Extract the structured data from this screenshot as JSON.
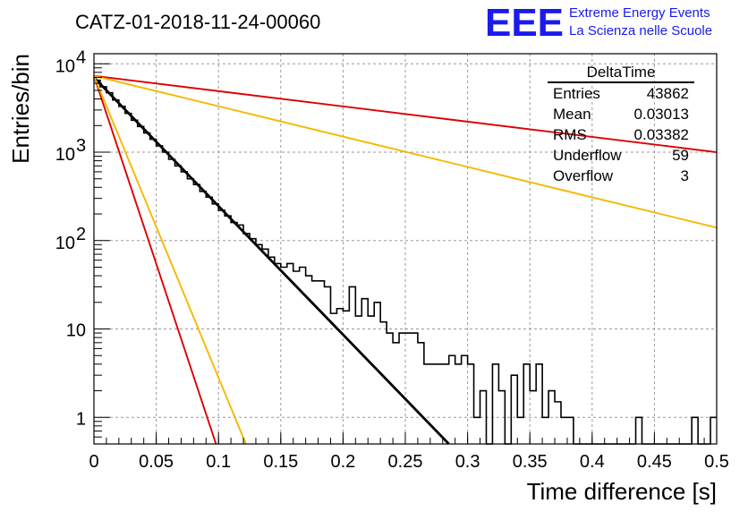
{
  "header": {
    "title": "CATZ-01-2018-11-24-00060",
    "logo_mark": "EEE",
    "logo_line1": "Extreme Energy Events",
    "logo_line2": "La Scienza nelle Scuole",
    "brand_color": "#1a1aee"
  },
  "stats_box": {
    "name": "DeltaTime",
    "rows": [
      {
        "label": "Entries",
        "value": "43862"
      },
      {
        "label": "Mean",
        "value": "0.03013"
      },
      {
        "label": "RMS",
        "value": "0.03382"
      },
      {
        "label": "Underflow",
        "value": "59"
      },
      {
        "label": "Overflow",
        "value": "3"
      }
    ]
  },
  "chart_data": {
    "type": "line",
    "xlabel": "Time difference [s]",
    "ylabel": "Entries/bin",
    "xlim": [
      0,
      0.5
    ],
    "ylim": [
      0.5,
      13000
    ],
    "yscale": "log",
    "grid": true,
    "x_ticks": [
      {
        "value": 0,
        "label": "0"
      },
      {
        "value": 0.05,
        "label": "0.05"
      },
      {
        "value": 0.1,
        "label": "0.1"
      },
      {
        "value": 0.15,
        "label": "0.15"
      },
      {
        "value": 0.2,
        "label": "0.2"
      },
      {
        "value": 0.25,
        "label": "0.25"
      },
      {
        "value": 0.3,
        "label": "0.3"
      },
      {
        "value": 0.35,
        "label": "0.35"
      },
      {
        "value": 0.4,
        "label": "0.4"
      },
      {
        "value": 0.45,
        "label": "0.45"
      },
      {
        "value": 0.5,
        "label": "0.5"
      }
    ],
    "y_ticks": [
      {
        "value": 1,
        "label": "1"
      },
      {
        "value": 10,
        "label": "10"
      },
      {
        "value": 100,
        "label": "10",
        "exp": "2"
      },
      {
        "value": 1000,
        "label": "10",
        "exp": "3"
      },
      {
        "value": 10000,
        "label": "10",
        "exp": "4"
      }
    ],
    "histogram": {
      "color": "#000000",
      "bin_width": 0.005,
      "bins": [
        {
          "x": 0.0,
          "y": 6500
        },
        {
          "x": 0.005,
          "y": 5500
        },
        {
          "x": 0.01,
          "y": 4700
        },
        {
          "x": 0.015,
          "y": 3900
        },
        {
          "x": 0.02,
          "y": 3300
        },
        {
          "x": 0.025,
          "y": 2750
        },
        {
          "x": 0.03,
          "y": 2300
        },
        {
          "x": 0.035,
          "y": 1950
        },
        {
          "x": 0.04,
          "y": 1650
        },
        {
          "x": 0.045,
          "y": 1400
        },
        {
          "x": 0.05,
          "y": 1180
        },
        {
          "x": 0.055,
          "y": 1000
        },
        {
          "x": 0.06,
          "y": 830
        },
        {
          "x": 0.065,
          "y": 700
        },
        {
          "x": 0.07,
          "y": 600
        },
        {
          "x": 0.075,
          "y": 500
        },
        {
          "x": 0.08,
          "y": 430
        },
        {
          "x": 0.085,
          "y": 360
        },
        {
          "x": 0.09,
          "y": 310
        },
        {
          "x": 0.095,
          "y": 260
        },
        {
          "x": 0.1,
          "y": 220
        },
        {
          "x": 0.105,
          "y": 190
        },
        {
          "x": 0.11,
          "y": 160
        },
        {
          "x": 0.115,
          "y": 150
        },
        {
          "x": 0.12,
          "y": 120
        },
        {
          "x": 0.125,
          "y": 105
        },
        {
          "x": 0.13,
          "y": 90
        },
        {
          "x": 0.135,
          "y": 80
        },
        {
          "x": 0.14,
          "y": 65
        },
        {
          "x": 0.145,
          "y": 55
        },
        {
          "x": 0.15,
          "y": 50
        },
        {
          "x": 0.155,
          "y": 55
        },
        {
          "x": 0.16,
          "y": 45
        },
        {
          "x": 0.165,
          "y": 50
        },
        {
          "x": 0.17,
          "y": 40
        },
        {
          "x": 0.175,
          "y": 35
        },
        {
          "x": 0.18,
          "y": 35
        },
        {
          "x": 0.185,
          "y": 30
        },
        {
          "x": 0.19,
          "y": 15
        },
        {
          "x": 0.195,
          "y": 17
        },
        {
          "x": 0.2,
          "y": 16
        },
        {
          "x": 0.205,
          "y": 30
        },
        {
          "x": 0.21,
          "y": 14
        },
        {
          "x": 0.215,
          "y": 22
        },
        {
          "x": 0.22,
          "y": 14
        },
        {
          "x": 0.225,
          "y": 20
        },
        {
          "x": 0.23,
          "y": 12
        },
        {
          "x": 0.235,
          "y": 9
        },
        {
          "x": 0.24,
          "y": 7
        },
        {
          "x": 0.245,
          "y": 9
        },
        {
          "x": 0.25,
          "y": 9
        },
        {
          "x": 0.255,
          "y": 9
        },
        {
          "x": 0.26,
          "y": 7
        },
        {
          "x": 0.265,
          "y": 4
        },
        {
          "x": 0.27,
          "y": 4
        },
        {
          "x": 0.275,
          "y": 4
        },
        {
          "x": 0.28,
          "y": 4
        },
        {
          "x": 0.285,
          "y": 5
        },
        {
          "x": 0.29,
          "y": 4
        },
        {
          "x": 0.295,
          "y": 5
        },
        {
          "x": 0.3,
          "y": 4
        },
        {
          "x": 0.305,
          "y": 1
        },
        {
          "x": 0.31,
          "y": 2
        },
        {
          "x": 0.315,
          "y": 0
        },
        {
          "x": 0.32,
          "y": 4
        },
        {
          "x": 0.325,
          "y": 2
        },
        {
          "x": 0.33,
          "y": 0
        },
        {
          "x": 0.335,
          "y": 3
        },
        {
          "x": 0.34,
          "y": 1
        },
        {
          "x": 0.345,
          "y": 4
        },
        {
          "x": 0.35,
          "y": 2
        },
        {
          "x": 0.355,
          "y": 4
        },
        {
          "x": 0.36,
          "y": 1
        },
        {
          "x": 0.365,
          "y": 2
        },
        {
          "x": 0.37,
          "y": 1.5
        },
        {
          "x": 0.375,
          "y": 1
        },
        {
          "x": 0.38,
          "y": 1
        },
        {
          "x": 0.385,
          "y": 0
        },
        {
          "x": 0.39,
          "y": 0
        },
        {
          "x": 0.395,
          "y": 0
        },
        {
          "x": 0.4,
          "y": 0
        },
        {
          "x": 0.405,
          "y": 0
        },
        {
          "x": 0.41,
          "y": 0
        },
        {
          "x": 0.415,
          "y": 0
        },
        {
          "x": 0.42,
          "y": 0
        },
        {
          "x": 0.425,
          "y": 0
        },
        {
          "x": 0.43,
          "y": 0
        },
        {
          "x": 0.435,
          "y": 1
        },
        {
          "x": 0.44,
          "y": 0
        },
        {
          "x": 0.445,
          "y": 0
        },
        {
          "x": 0.45,
          "y": 0
        },
        {
          "x": 0.455,
          "y": 0
        },
        {
          "x": 0.46,
          "y": 0
        },
        {
          "x": 0.465,
          "y": 0
        },
        {
          "x": 0.47,
          "y": 0
        },
        {
          "x": 0.475,
          "y": 0
        },
        {
          "x": 0.48,
          "y": 1
        },
        {
          "x": 0.485,
          "y": 0
        },
        {
          "x": 0.49,
          "y": 0
        },
        {
          "x": 0.495,
          "y": 1
        }
      ]
    },
    "fits": [
      {
        "color": "#000000",
        "points": [
          [
            0.0,
            7000
          ],
          [
            0.285,
            0.5
          ]
        ]
      },
      {
        "color": "#dd0000",
        "points": [
          [
            0.0,
            7300
          ],
          [
            0.5,
            1000
          ]
        ]
      },
      {
        "color": "#f5b800",
        "points": [
          [
            0.0,
            7300
          ],
          [
            0.5,
            140
          ]
        ]
      },
      {
        "color": "#dd0000",
        "points": [
          [
            0.0,
            7300
          ],
          [
            0.098,
            0.5
          ]
        ]
      },
      {
        "color": "#f5b800",
        "points": [
          [
            0.0,
            7300
          ],
          [
            0.122,
            0.5
          ]
        ]
      }
    ]
  }
}
